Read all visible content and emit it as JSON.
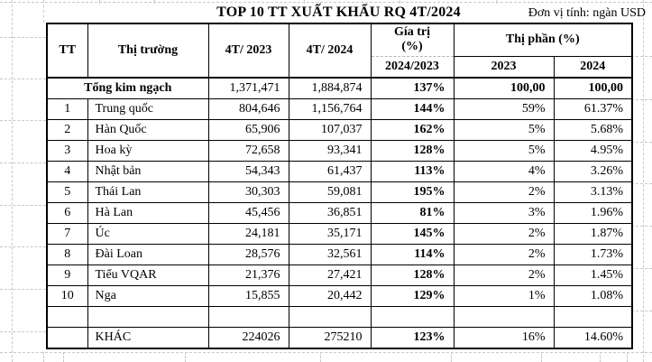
{
  "title": "TOP 10 TT XUẤT KHẨU RQ 4T/2024",
  "unit_label": "Đơn vị tính: ngàn USD",
  "colors": {
    "text": "#000000",
    "table_border": "#000000",
    "grid_dash": "#c9c9c9",
    "background": "#ffffff"
  },
  "table": {
    "headers": {
      "tt": "TT",
      "market": "Thị trường",
      "period_2023": "4T/ 2023",
      "period_2024": "4T/ 2024",
      "value_pct": "Gía trị\n(%)",
      "value_pct_sub": "2024/2023",
      "share_pct": "Thị phần (%)",
      "share_2023": "2023",
      "share_2024": "2024"
    },
    "total_row": {
      "label": "Tổng kim ngạch",
      "v2023": "1,371,471",
      "v2024": "1,884,874",
      "growth": "137%",
      "share2023": "100,00",
      "share2024": "100,00"
    },
    "rows": [
      {
        "tt": "1",
        "market": "Trung quốc",
        "v2023": "804,646",
        "v2024": "1,156,764",
        "growth": "144%",
        "share2023": "59%",
        "share2024": "61.37%"
      },
      {
        "tt": "2",
        "market": "Hàn Quốc",
        "v2023": "65,906",
        "v2024": "107,037",
        "growth": "162%",
        "share2023": "5%",
        "share2024": "5.68%"
      },
      {
        "tt": "3",
        "market": "Hoa kỳ",
        "v2023": "72,658",
        "v2024": "93,341",
        "growth": "128%",
        "share2023": "5%",
        "share2024": "4.95%"
      },
      {
        "tt": "4",
        "market": "Nhật bản",
        "v2023": "54,343",
        "v2024": "61,437",
        "growth": "113%",
        "share2023": "4%",
        "share2024": "3.26%"
      },
      {
        "tt": "5",
        "market": "Thái Lan",
        "v2023": "30,303",
        "v2024": "59,081",
        "growth": "195%",
        "share2023": "2%",
        "share2024": "3.13%"
      },
      {
        "tt": "6",
        "market": "Hà Lan",
        "v2023": "45,456",
        "v2024": "36,851",
        "growth": "81%",
        "share2023": "3%",
        "share2024": "1.96%"
      },
      {
        "tt": "7",
        "market": "Úc",
        "v2023": "24,181",
        "v2024": "35,171",
        "growth": "145%",
        "share2023": "2%",
        "share2024": "1.87%"
      },
      {
        "tt": "8",
        "market": "Đài Loan",
        "v2023": "28,576",
        "v2024": "32,561",
        "growth": "114%",
        "share2023": "2%",
        "share2024": "1.73%"
      },
      {
        "tt": "9",
        "market": "Tiểu VQAR",
        "v2023": "21,376",
        "v2024": "27,421",
        "growth": "128%",
        "share2023": "2%",
        "share2024": "1.45%"
      },
      {
        "tt": "10",
        "market": "Nga",
        "v2023": "15,855",
        "v2024": "20,442",
        "growth": "129%",
        "share2023": "1%",
        "share2024": "1.08%"
      }
    ],
    "blank_row": {
      "tt": "",
      "market": "",
      "v2023": "",
      "v2024": "",
      "growth": "",
      "share2023": "",
      "share2024": ""
    },
    "khac_row": {
      "tt": "",
      "market": "KHÁC",
      "v2023": "224026",
      "v2024": "275210",
      "growth": "123%",
      "share2023": "16%",
      "share2024": "14.60%"
    }
  }
}
